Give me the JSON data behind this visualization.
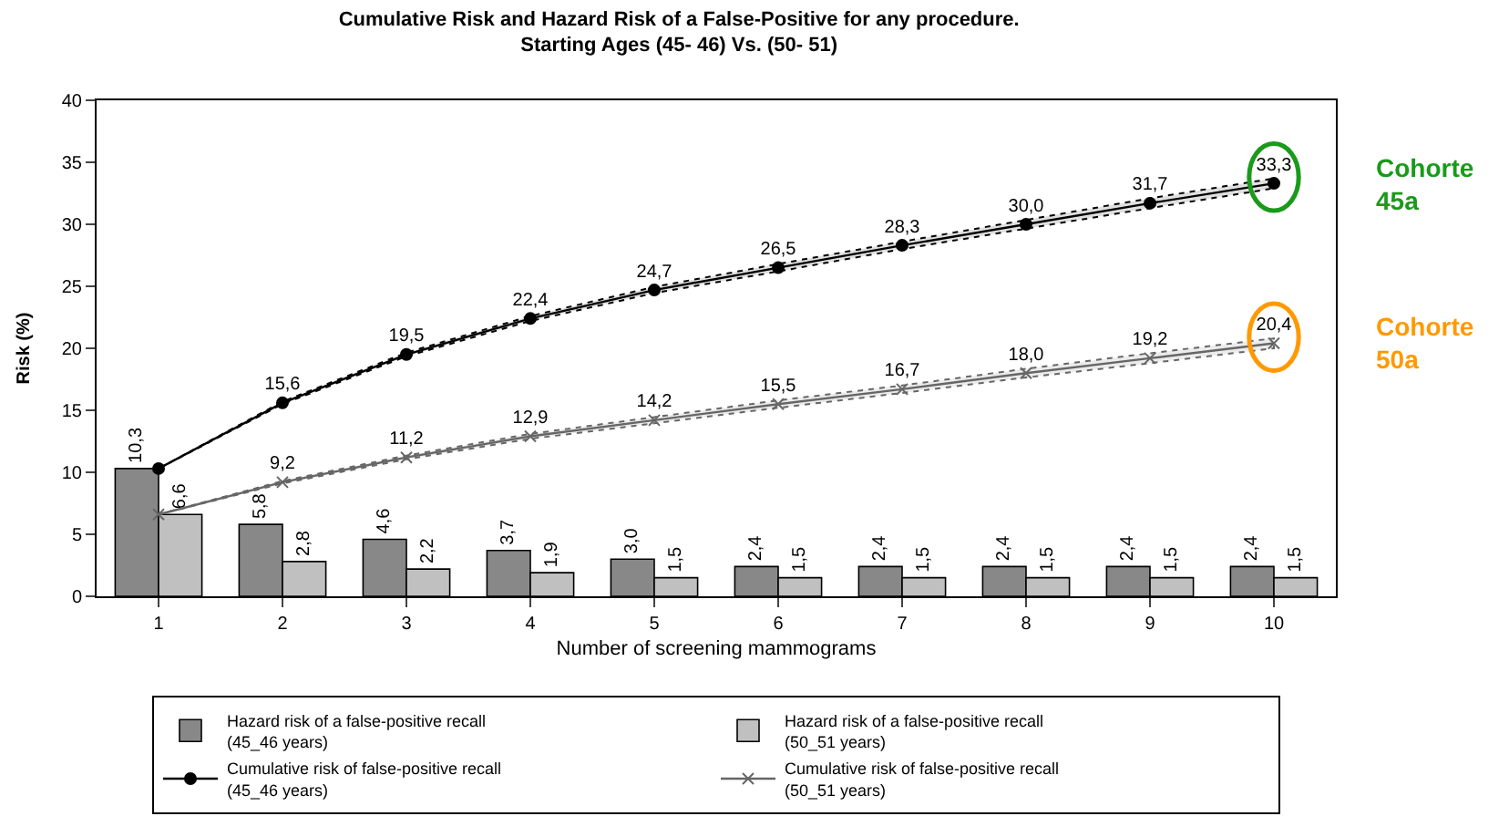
{
  "chart_data": {
    "type": "bar",
    "title": "Cumulative Risk and Hazard Risk of a False-Positive for any procedure.\nStarting Ages (45- 46) Vs. (50- 51)",
    "xlabel": "Number of screening mammograms",
    "ylabel": "Risk (%)",
    "categories": [
      "1",
      "2",
      "3",
      "4",
      "5",
      "6",
      "7",
      "8",
      "9",
      "10"
    ],
    "series": [
      {
        "name": "Hazard risk of a false-positive recall (45_46 years)",
        "color": "#888888",
        "values": [
          10.3,
          5.8,
          4.6,
          3.7,
          3.0,
          2.4,
          2.4,
          2.4,
          2.4,
          2.4
        ],
        "value_labels": [
          "10,3",
          "5,8",
          "4,6",
          "3,7",
          "3,0",
          "2,4",
          "2,4",
          "2,4",
          "2,4",
          "2,4"
        ]
      },
      {
        "name": "Hazard risk of a false-positive recall (50_51 years)",
        "color": "#c0c0c0",
        "values": [
          6.6,
          2.8,
          2.2,
          1.9,
          1.5,
          1.5,
          1.5,
          1.5,
          1.5,
          1.5
        ],
        "value_labels": [
          "6,6",
          "2,8",
          "2,2",
          "1,9",
          "1,5",
          "1,5",
          "1,5",
          "1,5",
          "1,5",
          "1,5"
        ]
      },
      {
        "name": "Cumulative risk of false-positive recall (45_46 years)",
        "type": "line",
        "color": "#000000",
        "marker": "circle",
        "values": [
          10.3,
          15.6,
          19.5,
          22.4,
          24.7,
          26.5,
          28.3,
          30.0,
          31.7,
          33.3
        ],
        "value_labels": [
          null,
          "15,6",
          "19,5",
          "22,4",
          "24,7",
          "26,5",
          "28,3",
          "30,0",
          "31,7",
          "33,3"
        ],
        "lower": [
          10.3,
          15.5,
          19.35,
          22.2,
          24.45,
          26.2,
          28.0,
          29.65,
          31.3,
          32.9
        ],
        "upper": [
          10.3,
          15.7,
          19.65,
          22.6,
          24.95,
          26.8,
          28.6,
          30.35,
          32.1,
          33.7
        ]
      },
      {
        "name": "Cumulative risk of false-positive recall (50_51 years)",
        "type": "line",
        "color": "#666666",
        "marker": "cross",
        "values": [
          6.6,
          9.2,
          11.2,
          12.9,
          14.2,
          15.5,
          16.7,
          18.0,
          19.2,
          20.4
        ],
        "value_labels": [
          null,
          "9,2",
          "11,2",
          "12,9",
          "14,2",
          "15,5",
          "16,7",
          "18,0",
          "19,2",
          "20,4"
        ],
        "lower": [
          6.6,
          9.1,
          11.05,
          12.7,
          13.95,
          15.2,
          16.4,
          17.65,
          18.8,
          20.0
        ],
        "upper": [
          6.6,
          9.3,
          11.35,
          13.1,
          14.45,
          15.8,
          17.0,
          18.35,
          19.6,
          20.8
        ]
      }
    ],
    "ylim": [
      0,
      40
    ],
    "yticks": [
      0,
      5,
      10,
      15,
      20,
      25,
      30,
      35,
      40
    ],
    "legend": "bottom",
    "annotations": [
      "Cohorte\n45a",
      "Cohorte\n50a"
    ]
  }
}
